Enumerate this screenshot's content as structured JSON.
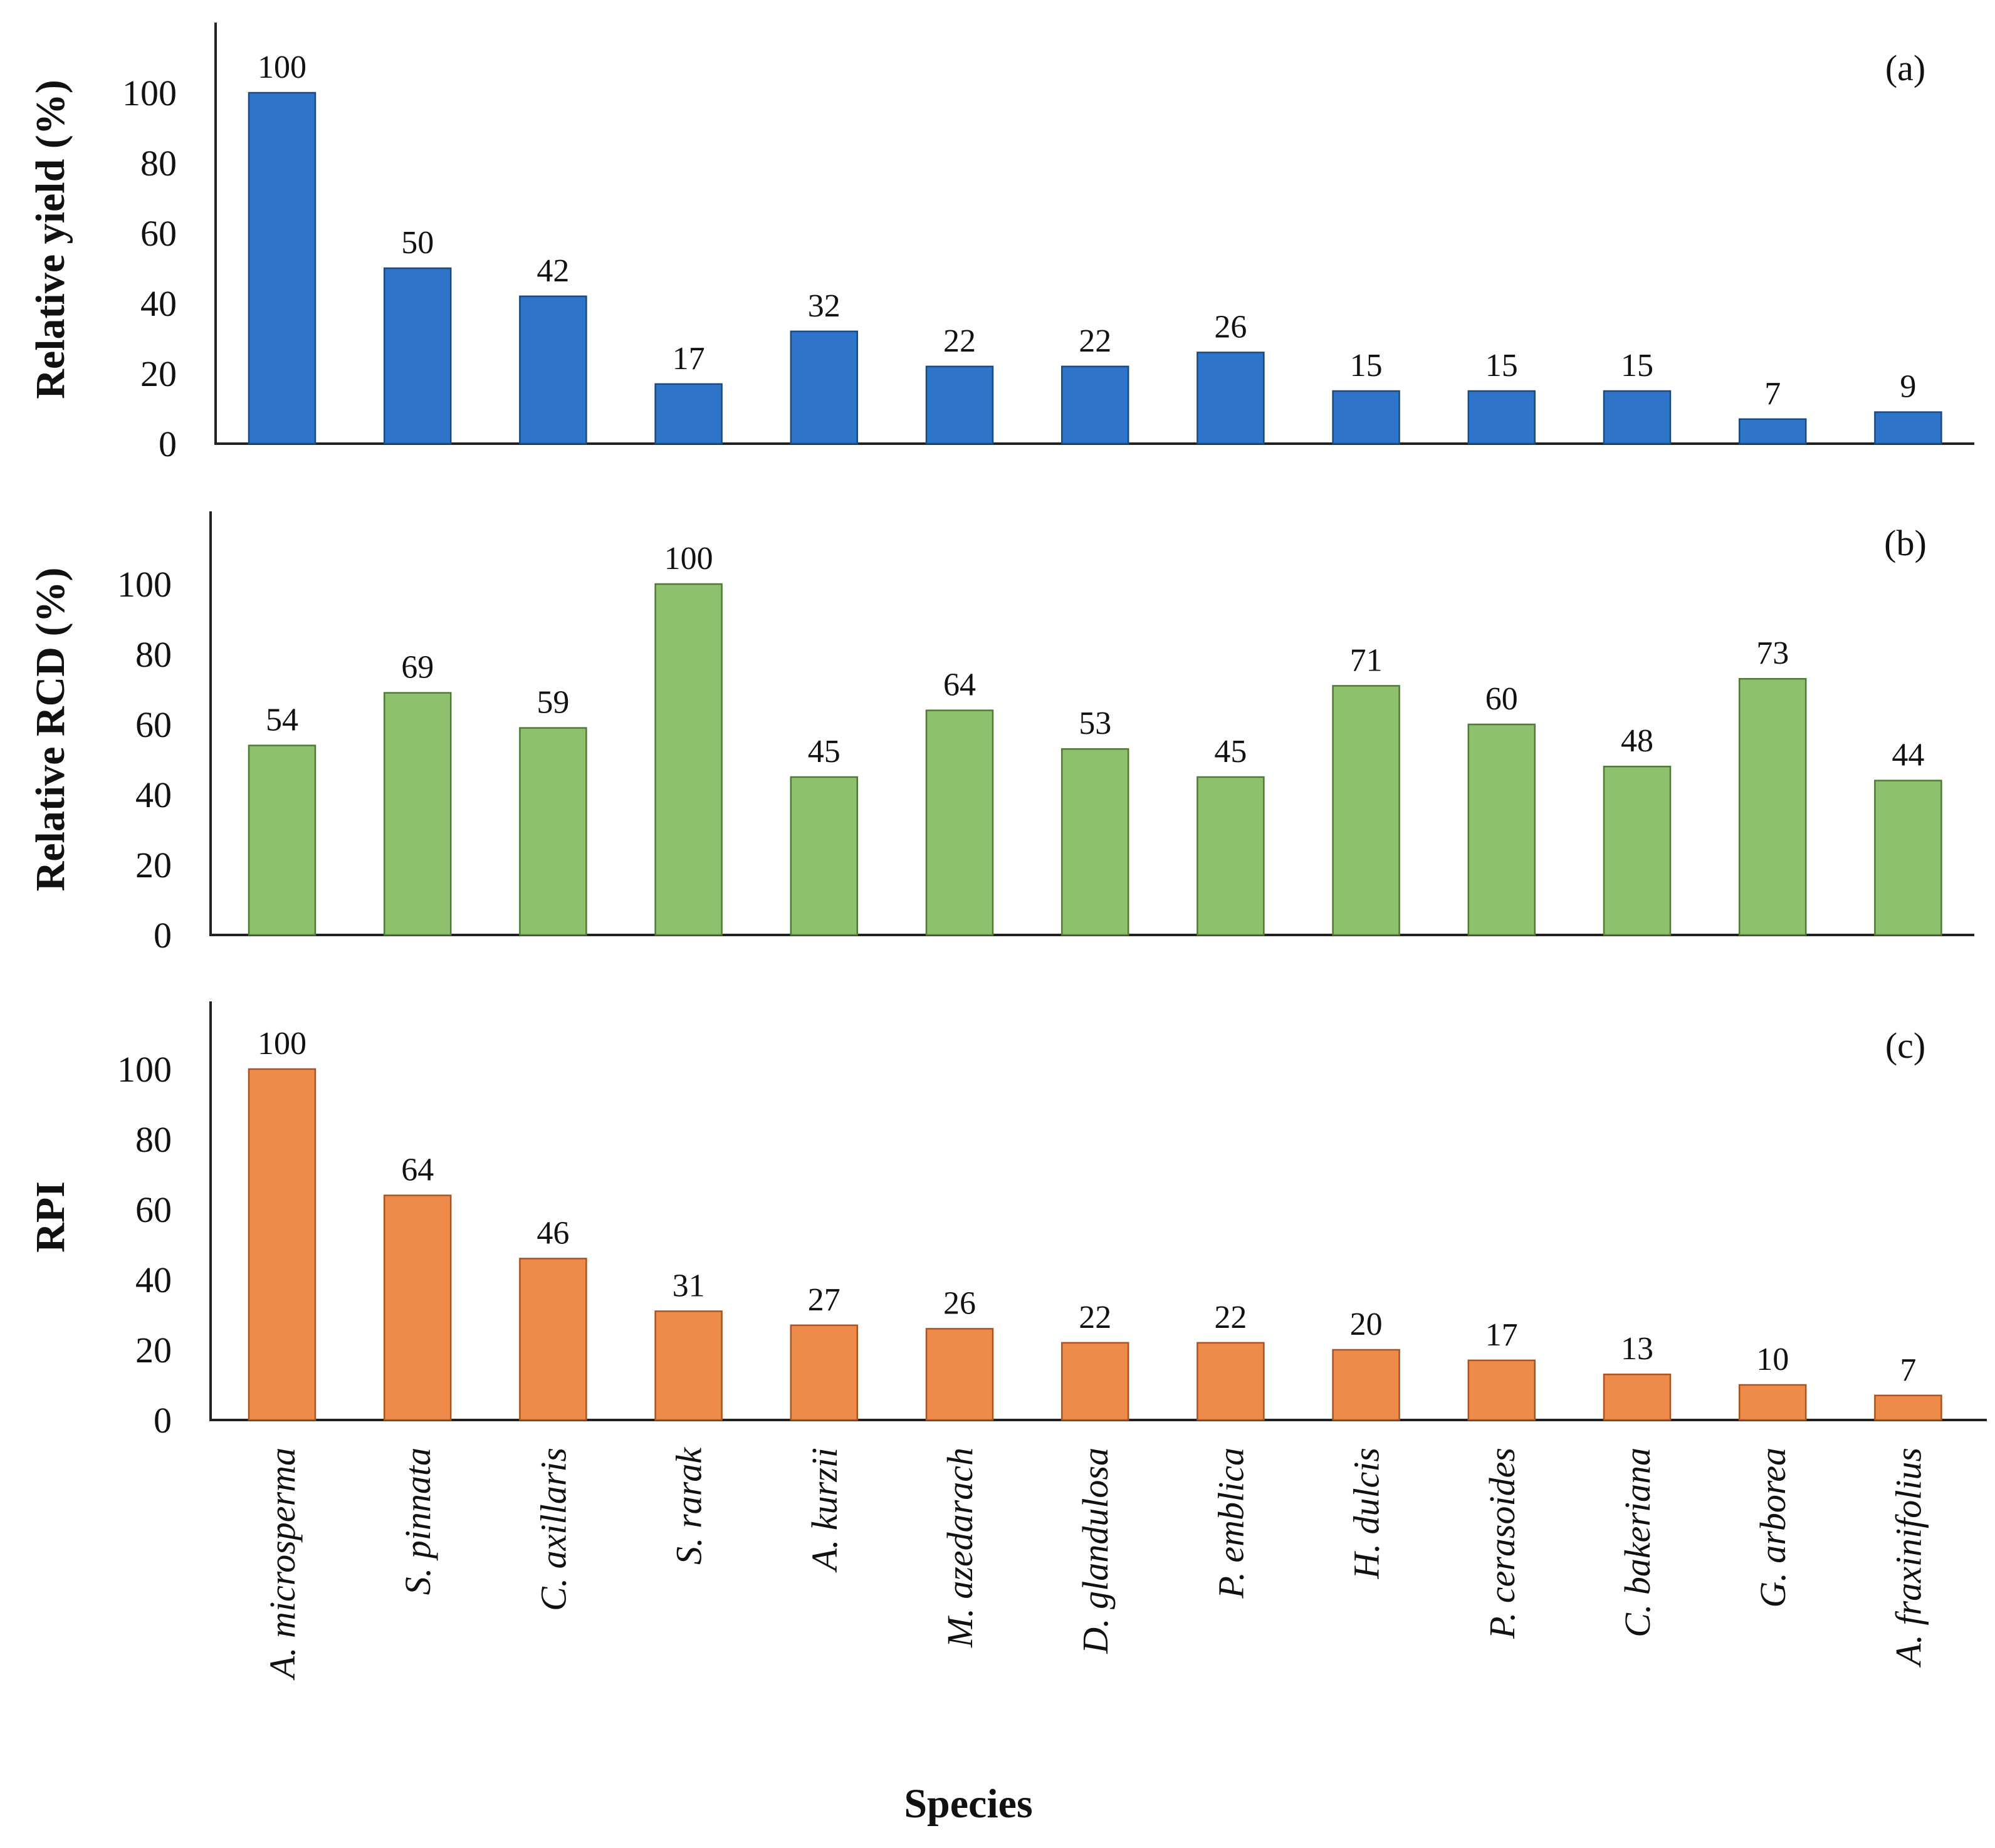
{
  "chart_data": [
    {
      "type": "bar",
      "panel": "(a)",
      "ylabel": "Relative yield (%)",
      "xlabel": "",
      "ylim": [
        0,
        120
      ],
      "yticks": [
        0,
        20,
        40,
        60,
        80,
        100
      ],
      "color": "#2E75C9",
      "edge_color": "#1B4A80",
      "categories": [
        "A. microsperma",
        "S. pinnata",
        "C. axillaris",
        "S. rarak",
        "A. kurzii",
        "M. azedarach",
        "D. glandulosa",
        "P. emblica",
        "H. dulcis",
        "P. cerasoides",
        "C. bakeriana",
        "G. arborea",
        "A. fraxinifolius"
      ],
      "values": [
        100,
        50,
        42,
        17,
        32,
        22,
        22,
        26,
        15,
        15,
        15,
        7,
        9
      ]
    },
    {
      "type": "bar",
      "panel": "(b)",
      "ylabel": "Relative RCD (%)",
      "xlabel": "",
      "ylim": [
        0,
        120
      ],
      "yticks": [
        0,
        20,
        40,
        60,
        80,
        100
      ],
      "color": "#8FC06E",
      "edge_color": "#4E7A35",
      "categories": [
        "A. microsperma",
        "S. pinnata",
        "C. axillaris",
        "S. rarak",
        "A. kurzii",
        "M. azedarach",
        "D. glandulosa",
        "P. emblica",
        "H. dulcis",
        "P. cerasoides",
        "C. bakeriana",
        "G. arborea",
        "A. fraxinifolius"
      ],
      "values": [
        54,
        69,
        59,
        100,
        45,
        64,
        53,
        45,
        71,
        60,
        48,
        73,
        44
      ]
    },
    {
      "type": "bar",
      "panel": "(c)",
      "ylabel": "RPI",
      "xlabel": "Species",
      "ylim": [
        0,
        120
      ],
      "yticks": [
        0,
        20,
        40,
        60,
        80,
        100
      ],
      "color": "#EE8A4A",
      "edge_color": "#A85420",
      "categories": [
        "A. microsperma",
        "S. pinnata",
        "C. axillaris",
        "S. rarak",
        "A. kurzii",
        "M. azedarach",
        "D. glandulosa",
        "P. emblica",
        "H. dulcis",
        "P. cerasoides",
        "C. bakeriana",
        "G. arborea",
        "A. fraxinifolius"
      ],
      "values": [
        100,
        64,
        46,
        31,
        27,
        26,
        22,
        22,
        20,
        17,
        13,
        10,
        7
      ]
    }
  ]
}
